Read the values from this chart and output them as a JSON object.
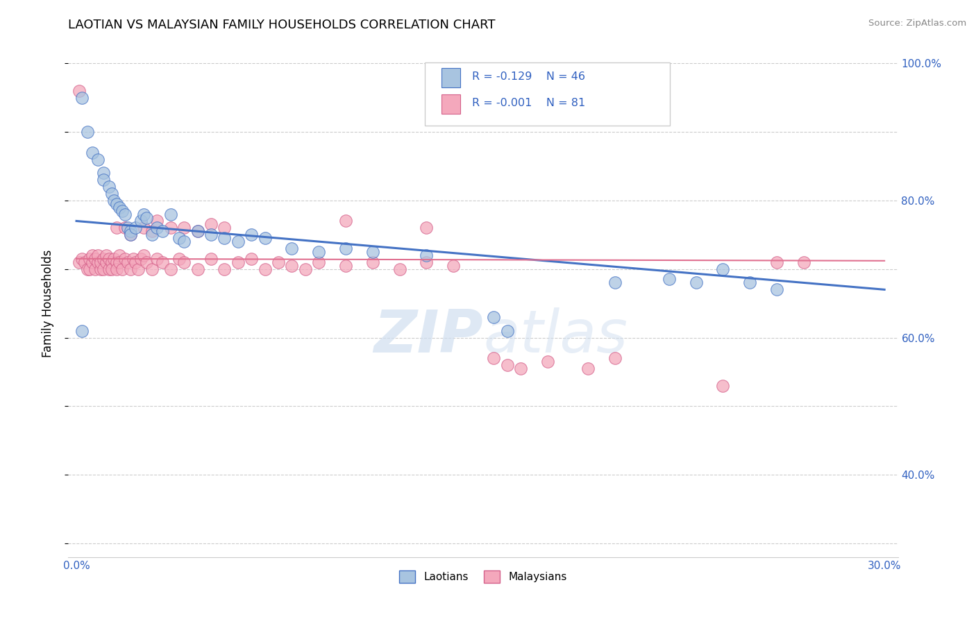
{
  "title": "LAOTIAN VS MALAYSIAN FAMILY HOUSEHOLDS CORRELATION CHART",
  "source": "Source: ZipAtlas.com",
  "ylabel_label": "Family Households",
  "xlim": [
    0.0,
    0.3
  ],
  "ylim": [
    0.28,
    1.02
  ],
  "xtick_positions": [
    0.0,
    0.05,
    0.1,
    0.15,
    0.2,
    0.25,
    0.3
  ],
  "xticklabels": [
    "0.0%",
    "",
    "",
    "",
    "",
    "",
    "30.0%"
  ],
  "ytick_positions": [
    0.3,
    0.4,
    0.5,
    0.6,
    0.7,
    0.8,
    0.9,
    1.0
  ],
  "yticklabels": [
    "",
    "40.0%",
    "",
    "60.0%",
    "",
    "80.0%",
    "",
    "100.0%"
  ],
  "legend_R_laotian": "-0.129",
  "legend_N_laotian": "46",
  "legend_R_malaysian": "-0.001",
  "legend_N_malaysian": "81",
  "laotian_color": "#a8c4e0",
  "malaysian_color": "#f4a8bc",
  "laotian_edge": "#4472c4",
  "malaysian_edge": "#d4608a",
  "trendline_laotian_color": "#4472c4",
  "trendline_malaysian_color": "#e07090",
  "tick_color": "#3060c0",
  "laotian_x": [
    0.002,
    0.004,
    0.006,
    0.008,
    0.01,
    0.01,
    0.012,
    0.013,
    0.014,
    0.015,
    0.016,
    0.017,
    0.018,
    0.019,
    0.02,
    0.02,
    0.022,
    0.024,
    0.025,
    0.026,
    0.028,
    0.03,
    0.032,
    0.035,
    0.038,
    0.04,
    0.045,
    0.05,
    0.055,
    0.06,
    0.065,
    0.07,
    0.08,
    0.09,
    0.1,
    0.11,
    0.13,
    0.155,
    0.16,
    0.2,
    0.22,
    0.23,
    0.24,
    0.25,
    0.26,
    0.002
  ],
  "laotian_y": [
    0.95,
    0.9,
    0.87,
    0.86,
    0.84,
    0.83,
    0.82,
    0.81,
    0.8,
    0.795,
    0.79,
    0.785,
    0.78,
    0.76,
    0.755,
    0.75,
    0.76,
    0.77,
    0.78,
    0.775,
    0.75,
    0.76,
    0.755,
    0.78,
    0.745,
    0.74,
    0.755,
    0.75,
    0.745,
    0.74,
    0.75,
    0.745,
    0.73,
    0.725,
    0.73,
    0.725,
    0.72,
    0.63,
    0.61,
    0.68,
    0.685,
    0.68,
    0.7,
    0.68,
    0.67,
    0.61
  ],
  "malaysian_x": [
    0.001,
    0.002,
    0.003,
    0.004,
    0.005,
    0.005,
    0.006,
    0.006,
    0.007,
    0.007,
    0.008,
    0.008,
    0.009,
    0.009,
    0.01,
    0.01,
    0.011,
    0.011,
    0.012,
    0.012,
    0.013,
    0.013,
    0.014,
    0.015,
    0.015,
    0.016,
    0.016,
    0.017,
    0.018,
    0.019,
    0.02,
    0.021,
    0.022,
    0.023,
    0.024,
    0.025,
    0.026,
    0.028,
    0.03,
    0.032,
    0.035,
    0.038,
    0.04,
    0.045,
    0.05,
    0.055,
    0.06,
    0.065,
    0.07,
    0.075,
    0.08,
    0.085,
    0.09,
    0.1,
    0.11,
    0.12,
    0.13,
    0.14,
    0.015,
    0.018,
    0.02,
    0.025,
    0.028,
    0.03,
    0.035,
    0.04,
    0.045,
    0.05,
    0.055,
    0.1,
    0.13,
    0.155,
    0.16,
    0.165,
    0.175,
    0.19,
    0.2,
    0.24,
    0.26,
    0.27,
    0.001
  ],
  "malaysian_y": [
    0.71,
    0.715,
    0.71,
    0.7,
    0.715,
    0.7,
    0.71,
    0.72,
    0.7,
    0.715,
    0.71,
    0.72,
    0.7,
    0.71,
    0.715,
    0.7,
    0.71,
    0.72,
    0.7,
    0.715,
    0.71,
    0.7,
    0.715,
    0.71,
    0.7,
    0.72,
    0.71,
    0.7,
    0.715,
    0.71,
    0.7,
    0.715,
    0.71,
    0.7,
    0.715,
    0.72,
    0.71,
    0.7,
    0.715,
    0.71,
    0.7,
    0.715,
    0.71,
    0.7,
    0.715,
    0.7,
    0.71,
    0.715,
    0.7,
    0.71,
    0.705,
    0.7,
    0.71,
    0.705,
    0.71,
    0.7,
    0.71,
    0.705,
    0.76,
    0.76,
    0.75,
    0.76,
    0.755,
    0.77,
    0.76,
    0.76,
    0.755,
    0.765,
    0.76,
    0.77,
    0.76,
    0.57,
    0.56,
    0.555,
    0.565,
    0.555,
    0.57,
    0.53,
    0.71,
    0.71,
    0.96
  ],
  "trendline_laotian_x0": 0.0,
  "trendline_laotian_y0": 0.77,
  "trendline_laotian_x1": 0.3,
  "trendline_laotian_y1": 0.67,
  "trendline_malaysian_x0": 0.0,
  "trendline_malaysian_y0": 0.715,
  "trendline_malaysian_x1": 0.3,
  "trendline_malaysian_y1": 0.712
}
